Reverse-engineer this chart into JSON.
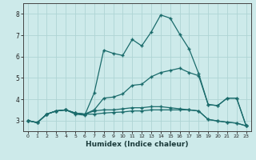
{
  "xlabel": "Humidex (Indice chaleur)",
  "xlim": [
    -0.5,
    23.5
  ],
  "ylim": [
    2.5,
    8.5
  ],
  "xticks": [
    0,
    1,
    2,
    3,
    4,
    5,
    6,
    7,
    8,
    9,
    10,
    11,
    12,
    13,
    14,
    15,
    16,
    17,
    18,
    19,
    20,
    21,
    22,
    23
  ],
  "yticks": [
    3,
    4,
    5,
    6,
    7,
    8
  ],
  "bg_color": "#cdeaea",
  "line_color": "#1a6b6b",
  "grid_color": "#aed4d4",
  "series": [
    [
      3.0,
      2.9,
      3.3,
      3.45,
      3.5,
      3.3,
      3.25,
      4.3,
      6.3,
      6.15,
      6.05,
      6.8,
      6.5,
      7.15,
      7.95,
      7.8,
      7.05,
      6.35,
      5.2,
      3.75,
      3.7,
      4.05,
      4.05,
      2.75
    ],
    [
      3.0,
      2.9,
      3.3,
      3.45,
      3.5,
      3.35,
      3.3,
      3.5,
      4.05,
      4.1,
      4.25,
      4.65,
      4.7,
      5.05,
      5.25,
      5.35,
      5.45,
      5.25,
      5.1,
      3.75,
      3.7,
      4.05,
      4.05,
      2.75
    ],
    [
      3.0,
      2.9,
      3.3,
      3.45,
      3.5,
      3.35,
      3.3,
      3.45,
      3.5,
      3.5,
      3.55,
      3.6,
      3.6,
      3.65,
      3.65,
      3.6,
      3.55,
      3.5,
      3.45,
      3.05,
      2.98,
      2.92,
      2.88,
      2.75
    ],
    [
      3.0,
      2.9,
      3.3,
      3.45,
      3.5,
      3.35,
      3.3,
      3.3,
      3.35,
      3.38,
      3.4,
      3.45,
      3.45,
      3.5,
      3.5,
      3.5,
      3.5,
      3.5,
      3.45,
      3.05,
      2.98,
      2.92,
      2.88,
      2.75
    ]
  ]
}
